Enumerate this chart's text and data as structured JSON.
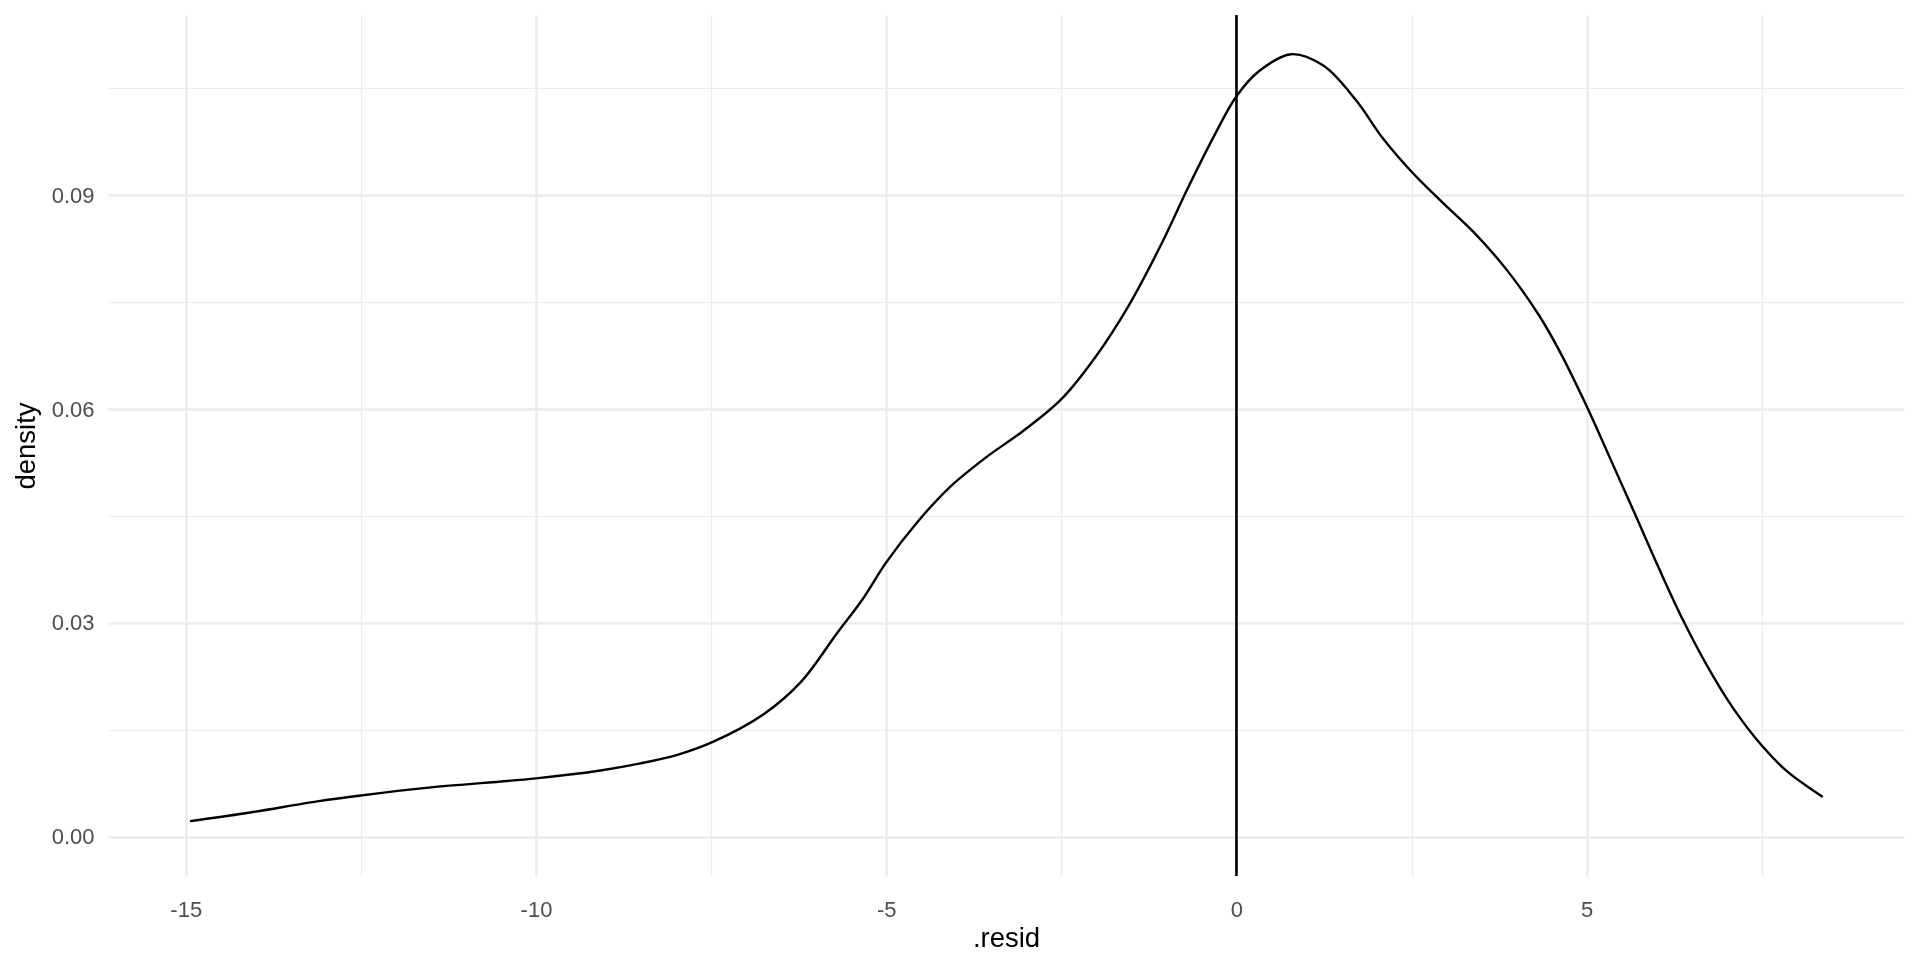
{
  "chart_data": {
    "type": "line",
    "xlabel": ".resid",
    "ylabel": "density",
    "x": [
      -14.94,
      -14.15,
      -13.1,
      -12.5,
      -11.53,
      -10.0,
      -9.08,
      -8.51,
      -7.98,
      -7.5,
      -6.75,
      -6.22,
      -5.7,
      -5.34,
      -5.0,
      -4.56,
      -4.11,
      -3.58,
      -3.05,
      -2.5,
      -2.0,
      -1.54,
      -1.07,
      -0.69,
      -0.3,
      0.0,
      0.32,
      0.78,
      1.24,
      1.71,
      2.09,
      2.5,
      2.94,
      3.4,
      3.87,
      4.33,
      4.62,
      5.0,
      5.33,
      5.68,
      6.03,
      6.38,
      6.73,
      7.08,
      7.5,
      7.87,
      8.37
    ],
    "series": [
      {
        "color": "#000000",
        "values": [
          0.0022,
          0.0033,
          0.005,
          0.0058,
          0.0069,
          0.0082,
          0.0093,
          0.0103,
          0.0115,
          0.0132,
          0.0172,
          0.0217,
          0.0286,
          0.0333,
          0.0385,
          0.0441,
          0.0489,
          0.0532,
          0.0569,
          0.0614,
          0.0675,
          0.0745,
          0.0832,
          0.0911,
          0.0987,
          0.1039,
          0.1074,
          0.1098,
          0.1082,
          0.1033,
          0.098,
          0.0933,
          0.089,
          0.0847,
          0.0794,
          0.073,
          0.068,
          0.0604,
          0.0532,
          0.0455,
          0.0377,
          0.0303,
          0.0238,
          0.0182,
          0.0128,
          0.0091,
          0.0056
        ]
      }
    ],
    "xlim": [
      -16.11,
      9.53
    ],
    "ylim": [
      -0.0055,
      0.1153
    ],
    "xticks": [
      -15,
      {
        "value": -12.5,
        "label": null
      },
      -10,
      {
        "value": -7.5,
        "label": null
      },
      -5,
      {
        "value": -2.5,
        "label": null
      },
      0,
      {
        "value": 2.5,
        "label": null
      },
      5,
      {
        "value": 7.5,
        "label": null
      }
    ],
    "yticks": [
      {
        "value": 0,
        "label": "0.00"
      },
      {
        "value": 0.015,
        "label": null
      },
      0.03,
      {
        "value": 0.045,
        "label": null
      },
      0.06,
      {
        "value": 0.075,
        "label": null
      },
      0.09,
      {
        "value": 0.105,
        "label": null
      }
    ],
    "ref_lines": [
      {
        "axis": "x",
        "value": 0,
        "color": "#000000"
      }
    ],
    "grid": true
  }
}
